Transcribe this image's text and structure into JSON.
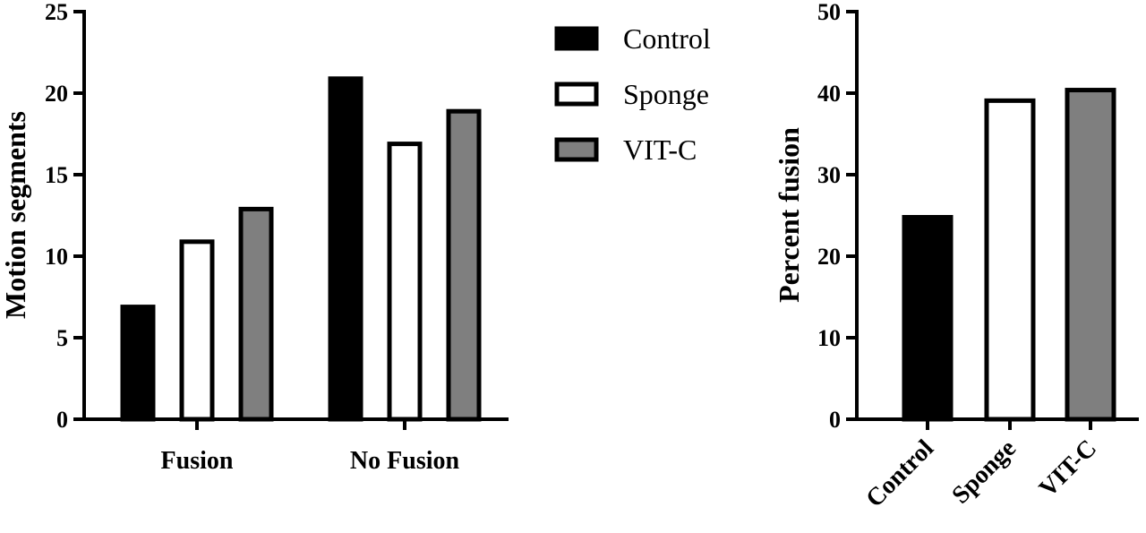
{
  "chart_data": [
    {
      "type": "bar",
      "categories": [
        "Fusion",
        "No Fusion"
      ],
      "series": [
        {
          "name": "Control",
          "values": [
            7,
            21
          ],
          "color": "#000000"
        },
        {
          "name": "Sponge",
          "values": [
            11,
            17
          ],
          "color": "#ffffff"
        },
        {
          "name": "VIT-C",
          "values": [
            13,
            19
          ],
          "color": "#7f7f7f"
        }
      ],
      "ylabel": "Motion segments",
      "ylim": [
        0,
        25
      ],
      "yticks": [
        0,
        5,
        10,
        15,
        20,
        25
      ],
      "grid": false,
      "legend": "top-right"
    },
    {
      "type": "bar",
      "categories": [
        "Control",
        "Sponge",
        "VIT-C"
      ],
      "values": [
        25,
        39.3,
        40.6
      ],
      "colors": [
        "#000000",
        "#ffffff",
        "#7f7f7f"
      ],
      "ylabel": "Percent fusion",
      "ylim": [
        0,
        50
      ],
      "yticks": [
        0,
        10,
        20,
        30,
        40,
        50
      ],
      "grid": false
    }
  ]
}
